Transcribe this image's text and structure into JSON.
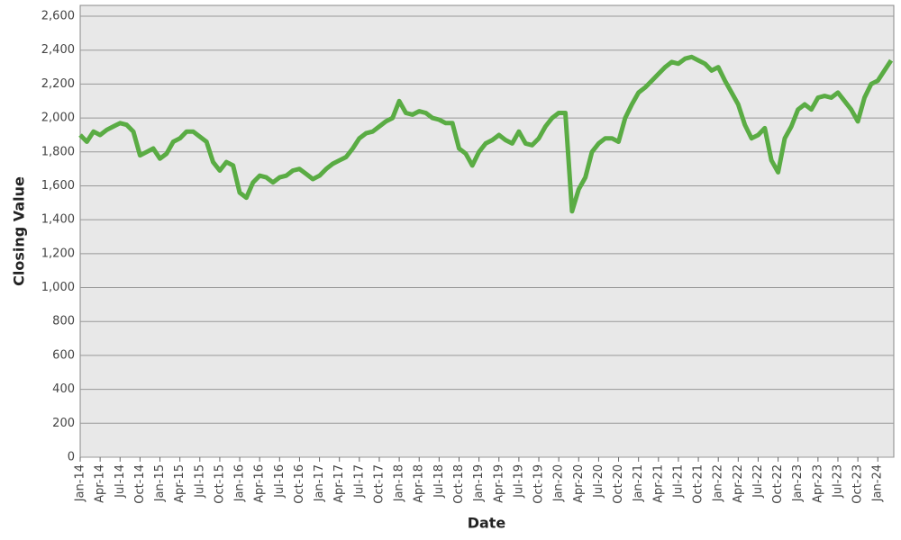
{
  "chart_data": {
    "type": "line",
    "x_label": "Date",
    "y_label": "Closing Value",
    "categories": [
      "Jan-14",
      null,
      null,
      "Apr-14",
      null,
      null,
      "Jul-14",
      null,
      null,
      "Oct-14",
      null,
      null,
      "Jan-15",
      null,
      null,
      "Apr-15",
      null,
      null,
      "Jul-15",
      null,
      null,
      "Oct-15",
      null,
      null,
      "Jan-16",
      null,
      null,
      "Apr-16",
      null,
      null,
      "Jul-16",
      null,
      null,
      "Oct-16",
      null,
      null,
      "Jan-17",
      null,
      null,
      "Apr-17",
      null,
      null,
      "Jul-17",
      null,
      null,
      "Oct-17",
      null,
      null,
      "Jan-18",
      null,
      null,
      "Apr-18",
      null,
      null,
      "Jul-18",
      null,
      null,
      "Oct-18",
      null,
      null,
      "Jan-19",
      null,
      null,
      "Apr-19",
      null,
      null,
      "Jul-19",
      null,
      null,
      "Oct-19",
      null,
      null,
      "Jan-20",
      null,
      null,
      "Apr-20",
      null,
      null,
      "Jul-20",
      null,
      null,
      "Oct-20",
      null,
      null,
      "Jan-21",
      null,
      null,
      "Apr-21",
      null,
      null,
      "Jul-21",
      null,
      null,
      "Oct-21",
      null,
      null,
      "Jan-22",
      null,
      null,
      "Apr-22",
      null,
      null,
      "Jul-22",
      null,
      null,
      "Oct-22",
      null,
      null,
      "Jan-23",
      null,
      null,
      "Apr-23",
      null,
      null,
      "Jul-23",
      null,
      null,
      "Oct-23",
      null,
      null,
      "Jan-24",
      null,
      null
    ],
    "series": [
      {
        "name": "Closing Value",
        "color": "#5aac44",
        "values": [
          1900,
          1860,
          1920,
          1900,
          1930,
          1950,
          1970,
          1960,
          1920,
          1780,
          1800,
          1820,
          1760,
          1790,
          1860,
          1880,
          1920,
          1920,
          1890,
          1860,
          1740,
          1690,
          1740,
          1720,
          1560,
          1530,
          1620,
          1660,
          1650,
          1620,
          1650,
          1660,
          1690,
          1700,
          1670,
          1640,
          1660,
          1700,
          1730,
          1750,
          1770,
          1820,
          1880,
          1910,
          1920,
          1950,
          1980,
          2000,
          2100,
          2030,
          2020,
          2040,
          2030,
          2000,
          1990,
          1970,
          1970,
          1820,
          1790,
          1720,
          1800,
          1850,
          1870,
          1900,
          1870,
          1850,
          1920,
          1850,
          1840,
          1880,
          1950,
          2000,
          2030,
          2030,
          1450,
          1580,
          1650,
          1800,
          1850,
          1880,
          1880,
          1860,
          2000,
          2080,
          2150,
          2180,
          2220,
          2260,
          2300,
          2330,
          2320,
          2350,
          2360,
          2340,
          2320,
          2280,
          2300,
          2220,
          2150,
          2080,
          1960,
          1880,
          1900,
          1940,
          1750,
          1680,
          1880,
          1950,
          2050,
          2080,
          2050,
          2120,
          2130,
          2120,
          2150,
          2100,
          2050,
          1980,
          2120,
          2200,
          2220,
          2280,
          2340
        ]
      }
    ],
    "ylim": [
      0,
      2664
    ],
    "yticks": [
      0,
      200,
      400,
      600,
      800,
      {
        "value": 1000,
        "label": "1,000"
      },
      {
        "value": 1200,
        "label": "1,200"
      },
      {
        "value": 1400,
        "label": "1,400"
      },
      {
        "value": 1600,
        "label": "1,600"
      },
      {
        "value": 1800,
        "label": "1,800"
      },
      {
        "value": 2000,
        "label": "2,000"
      },
      {
        "value": 2200,
        "label": "2,200"
      },
      {
        "value": 2400,
        "label": "2,400"
      },
      {
        "value": 2600,
        "label": "2,600"
      }
    ],
    "grid": true
  }
}
